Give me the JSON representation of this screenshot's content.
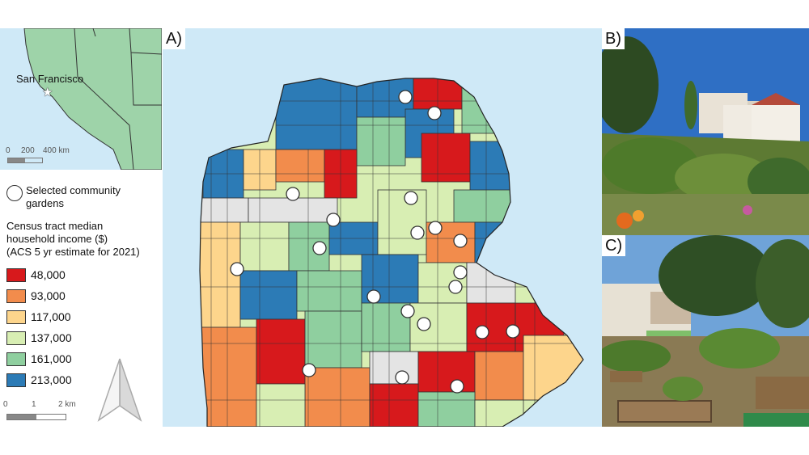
{
  "panels": {
    "a_label": "A)",
    "b_label": "B)",
    "c_label": "C)"
  },
  "inset": {
    "city_label": "San Francisco",
    "scale": {
      "t0": "0",
      "t1": "200",
      "t2": "400 km"
    }
  },
  "legend": {
    "gardens_label": "Selected community gardens",
    "income_title": "Census tract median household income ($) (ACS 5 yr estimate for 2021)",
    "income_title_lines": [
      "Census tract median",
      "household income ($)",
      "(ACS 5 yr estimate for 2021)"
    ],
    "gardens_lines": [
      "Selected community",
      "gardens"
    ],
    "classes": [
      {
        "label": "48,000",
        "color": "#d7191c"
      },
      {
        "label": "93,000",
        "color": "#f28c4c"
      },
      {
        "label": "117,000",
        "color": "#fdd58c"
      },
      {
        "label": "137,000",
        "color": "#d8eeb3"
      },
      {
        "label": "161,000",
        "color": "#8fcf9f"
      },
      {
        "label": "213,000",
        "color": "#2c7bb6"
      }
    ],
    "scale": {
      "t0": "0",
      "t1": "1",
      "t2": "2 km"
    }
  },
  "colors": {
    "water": "#cfe9f7",
    "land_inset": "#9ed3a9",
    "no_data": "#e4e4e4"
  }
}
